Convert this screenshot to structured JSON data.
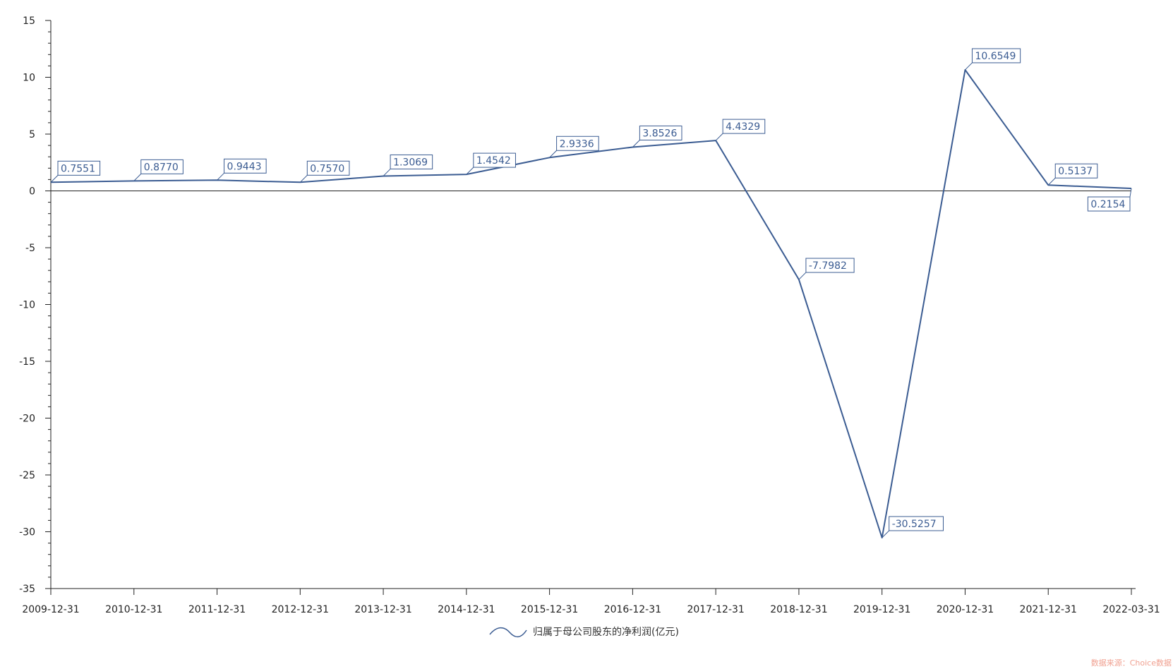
{
  "chart_data": {
    "type": "line",
    "x": [
      "2009-12-31",
      "2010-12-31",
      "2011-12-31",
      "2012-12-31",
      "2013-12-31",
      "2014-12-31",
      "2015-12-31",
      "2016-12-31",
      "2017-12-31",
      "2018-12-31",
      "2019-12-31",
      "2020-12-31",
      "2021-12-31",
      "2022-03-31"
    ],
    "series": [
      {
        "name": "归属于母公司股东的净利润(亿元)",
        "values": [
          0.7551,
          0.877,
          0.9443,
          0.757,
          1.3069,
          1.4542,
          2.9336,
          3.8526,
          4.4329,
          -7.7982,
          -30.5257,
          10.6549,
          0.5137,
          0.2154
        ],
        "labels": [
          "0.7551",
          "0.8770",
          "0.9443",
          "0.7570",
          "1.3069",
          "1.4542",
          "2.9336",
          "3.8526",
          "4.4329",
          "-7.7982",
          "-30.5257",
          "10.6549",
          "0.5137",
          "0.2154"
        ],
        "color": "#3b5c92"
      }
    ],
    "y_ticks": [
      15,
      10,
      5,
      0,
      -5,
      -10,
      -15,
      -20,
      -25,
      -30,
      -35
    ],
    "ylim": [
      -35,
      15
    ],
    "zero_line": true,
    "grid": false,
    "legend_position": "bottom-center",
    "source": "数据来源：Choice数据"
  }
}
